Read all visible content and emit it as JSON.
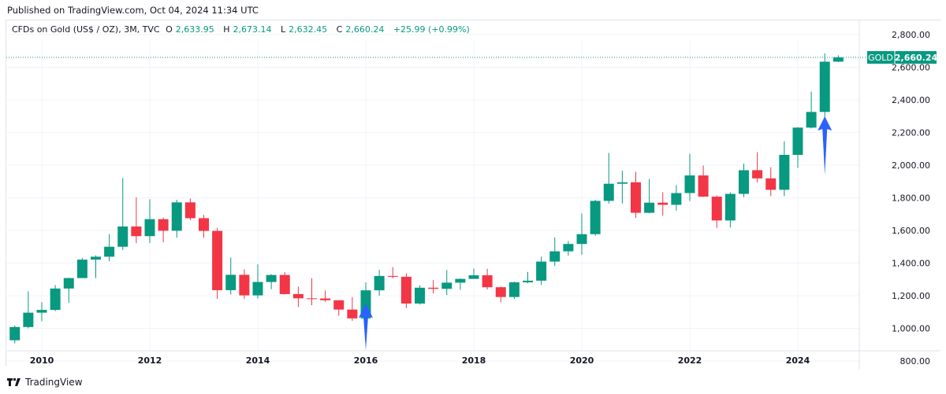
{
  "header": {
    "published": "Published on TradingView.com, Oct 04, 2024 11:34 UTC"
  },
  "legend": {
    "symbol": "CFDs on Gold (US$ / OZ), 3M, TVC",
    "o_label": "O",
    "o": "2,633.95",
    "h_label": "H",
    "h": "2,673.14",
    "l_label": "L",
    "l": "2,632.45",
    "c_label": "C",
    "c": "2,660.24",
    "change": "+25.99 (+0.99%)"
  },
  "price_tag": {
    "symbol": "GOLD",
    "value": "2,660.24"
  },
  "footer": {
    "brand": "TradingView"
  },
  "colors": {
    "up": "#089981",
    "down": "#f23645",
    "arrow": "#2962ff",
    "grid": "#f0f3fa"
  },
  "chart_data": {
    "type": "candlestick",
    "interval": "3M",
    "ylim": [
      700,
      2850
    ],
    "y_ticks": [
      800,
      1000,
      1200,
      1400,
      1600,
      1800,
      2000,
      2200,
      2400,
      2600,
      2800
    ],
    "y_tick_labels": [
      "800.00",
      "1,000.00",
      "1,200.00",
      "1,400.00",
      "1,600.00",
      "1,800.00",
      "2,000.00",
      "2,200.00",
      "2,400.00",
      "2,600.00",
      "2,800.00"
    ],
    "x_ticks": [
      "2010",
      "2012",
      "2014",
      "2016",
      "2018",
      "2020",
      "2022",
      "2024"
    ],
    "start": "2009-Q3",
    "last_price": 2660.24,
    "annotations": [
      {
        "type": "arrow-up",
        "at": "2016-Q1"
      },
      {
        "type": "arrow-up",
        "at": "2024-Q3"
      }
    ],
    "ohlc": [
      [
        927,
        1018,
        908,
        1008
      ],
      [
        1008,
        1227,
        1000,
        1096
      ],
      [
        1096,
        1161,
        1044,
        1113
      ],
      [
        1113,
        1265,
        1105,
        1244
      ],
      [
        1244,
        1310,
        1157,
        1308
      ],
      [
        1308,
        1431,
        1308,
        1421
      ],
      [
        1421,
        1447,
        1308,
        1439
      ],
      [
        1439,
        1577,
        1411,
        1500
      ],
      [
        1500,
        1921,
        1480,
        1624
      ],
      [
        1624,
        1803,
        1522,
        1565
      ],
      [
        1565,
        1791,
        1523,
        1669
      ],
      [
        1669,
        1678,
        1527,
        1598
      ],
      [
        1598,
        1788,
        1556,
        1772
      ],
      [
        1772,
        1796,
        1662,
        1675
      ],
      [
        1675,
        1695,
        1555,
        1597
      ],
      [
        1597,
        1616,
        1180,
        1234
      ],
      [
        1234,
        1434,
        1207,
        1328
      ],
      [
        1328,
        1361,
        1180,
        1202
      ],
      [
        1202,
        1392,
        1182,
        1284
      ],
      [
        1284,
        1332,
        1240,
        1327
      ],
      [
        1327,
        1345,
        1206,
        1210
      ],
      [
        1210,
        1255,
        1131,
        1184
      ],
      [
        1184,
        1307,
        1142,
        1183
      ],
      [
        1183,
        1232,
        1162,
        1172
      ],
      [
        1172,
        1170,
        1077,
        1115
      ],
      [
        1115,
        1191,
        1046,
        1061
      ],
      [
        1061,
        1282,
        1061,
        1233
      ],
      [
        1233,
        1358,
        1200,
        1321
      ],
      [
        1321,
        1375,
        1306,
        1316
      ],
      [
        1316,
        1337,
        1123,
        1152
      ],
      [
        1152,
        1264,
        1146,
        1249
      ],
      [
        1249,
        1296,
        1214,
        1242
      ],
      [
        1242,
        1357,
        1204,
        1280
      ],
      [
        1280,
        1306,
        1236,
        1303
      ],
      [
        1303,
        1366,
        1303,
        1325
      ],
      [
        1325,
        1365,
        1238,
        1252
      ],
      [
        1252,
        1256,
        1160,
        1192
      ],
      [
        1192,
        1287,
        1180,
        1282
      ],
      [
        1282,
        1346,
        1276,
        1292
      ],
      [
        1292,
        1439,
        1266,
        1409
      ],
      [
        1409,
        1557,
        1381,
        1472
      ],
      [
        1472,
        1535,
        1445,
        1517
      ],
      [
        1517,
        1703,
        1451,
        1577
      ],
      [
        1577,
        1788,
        1568,
        1781
      ],
      [
        1781,
        2075,
        1764,
        1886
      ],
      [
        1886,
        1966,
        1765,
        1895
      ],
      [
        1895,
        1959,
        1677,
        1708
      ],
      [
        1708,
        1916,
        1705,
        1770
      ],
      [
        1770,
        1834,
        1690,
        1757
      ],
      [
        1757,
        1877,
        1722,
        1829
      ],
      [
        1829,
        2070,
        1780,
        1937
      ],
      [
        1937,
        1998,
        1805,
        1807
      ],
      [
        1807,
        1814,
        1615,
        1661
      ],
      [
        1661,
        1833,
        1618,
        1824
      ],
      [
        1824,
        2009,
        1804,
        1969
      ],
      [
        1969,
        2079,
        1893,
        1919
      ],
      [
        1919,
        1987,
        1810,
        1849
      ],
      [
        1849,
        2146,
        1810,
        2063
      ],
      [
        2063,
        2233,
        1984,
        2230
      ],
      [
        2230,
        2450,
        2225,
        2326
      ],
      [
        2326,
        2685,
        2293,
        2634
      ],
      [
        2634,
        2673,
        2632,
        2660
      ]
    ]
  }
}
